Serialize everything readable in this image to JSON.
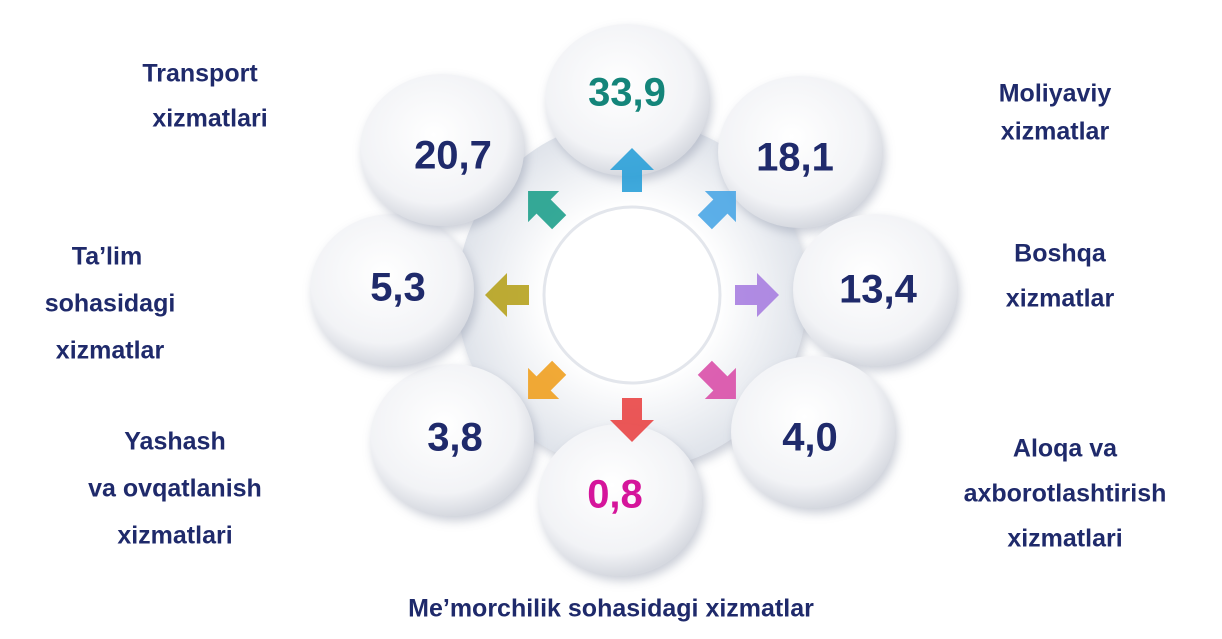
{
  "nodes": [
    {
      "value": "33,9",
      "color": "#14857a",
      "label": []
    },
    {
      "value": "18,1",
      "color": "#1f2a6b",
      "label": [
        "Moliyaviy",
        "xizmatlar"
      ]
    },
    {
      "value": "13,4",
      "color": "#1f2a6b",
      "label": [
        "Boshqa",
        "xizmatlar"
      ]
    },
    {
      "value": "4,0",
      "color": "#1f2a6b",
      "label": [
        "Aloqa va",
        "axborotlashtirish",
        "xizmatlari"
      ]
    },
    {
      "value": "0,8",
      "color": "#d5159b",
      "label": [
        "Me’morchilik sohasidagi xizmatlar"
      ]
    },
    {
      "value": "3,8",
      "color": "#1f2a6b",
      "label": [
        "Yashash",
        "va ovqatlanish",
        "xizmatlari"
      ]
    },
    {
      "value": "5,3",
      "color": "#1f2a6b",
      "label": [
        "Ta’lim",
        "sohasidagi",
        "xizmatlar"
      ]
    },
    {
      "value": "20,7",
      "color": "#1f2a6b",
      "label": [
        "Transport",
        "xizmatlari"
      ]
    }
  ]
}
